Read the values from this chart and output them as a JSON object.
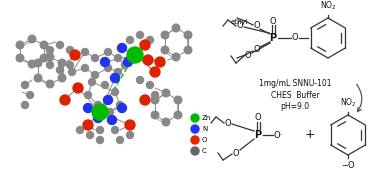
{
  "bg_color": "#ffffff",
  "fig_width": 3.78,
  "fig_height": 1.73,
  "dpi": 100,
  "legend_items": [
    {
      "label": "Zn",
      "color": "#00bb00"
    },
    {
      "label": "N",
      "color": "#2233ff"
    },
    {
      "label": "O",
      "color": "#ee2200"
    },
    {
      "label": "C",
      "color": "#666666"
    }
  ],
  "reaction_text": "1mg/mL SNNU-101\nCHES  Buffer\npH=9.0",
  "atom_gray_color": "#888888",
  "atom_red_color": "#dd2200",
  "atom_blue_color": "#2233ee",
  "atom_green_color": "#00bb00",
  "bond_color": "#888888",
  "chem_color": "#333333",
  "text_color": "#111111"
}
